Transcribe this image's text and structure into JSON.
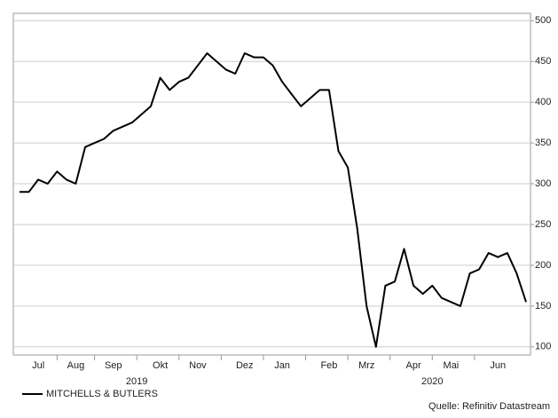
{
  "chart_data": {
    "type": "line",
    "categories": [
      null,
      null,
      "Jul",
      null,
      null,
      null,
      "Aug",
      null,
      null,
      null,
      "Sep",
      null,
      null,
      null,
      null,
      "Okt",
      null,
      null,
      null,
      "Nov",
      null,
      null,
      null,
      null,
      "Dez",
      null,
      null,
      null,
      "Jan",
      null,
      null,
      null,
      null,
      "Feb",
      null,
      null,
      null,
      "Mrz",
      null,
      null,
      null,
      null,
      "Apr",
      null,
      null,
      null,
      "Mai",
      null,
      null,
      null,
      null,
      "Jun",
      null,
      null,
      null
    ],
    "years": [
      "2019",
      "2020"
    ],
    "series": [
      {
        "name": "MITCHELLS & BUTLERS",
        "color": "#000000",
        "values": [
          290,
          290,
          305,
          300,
          315,
          305,
          300,
          345,
          350,
          355,
          365,
          370,
          375,
          385,
          395,
          430,
          415,
          425,
          430,
          445,
          460,
          450,
          440,
          435,
          460,
          455,
          455,
          445,
          425,
          410,
          395,
          405,
          415,
          415,
          340,
          320,
          245,
          150,
          100,
          175,
          180,
          220,
          175,
          165,
          175,
          160,
          155,
          150,
          190,
          195,
          215,
          210,
          215,
          190,
          155
        ]
      }
    ],
    "ylim": [
      90,
      509
    ],
    "yticks": [
      100,
      150,
      200,
      250,
      300,
      350,
      400,
      450,
      500
    ],
    "grid": true,
    "source": "Quelle: Refinitiv Datastream"
  }
}
